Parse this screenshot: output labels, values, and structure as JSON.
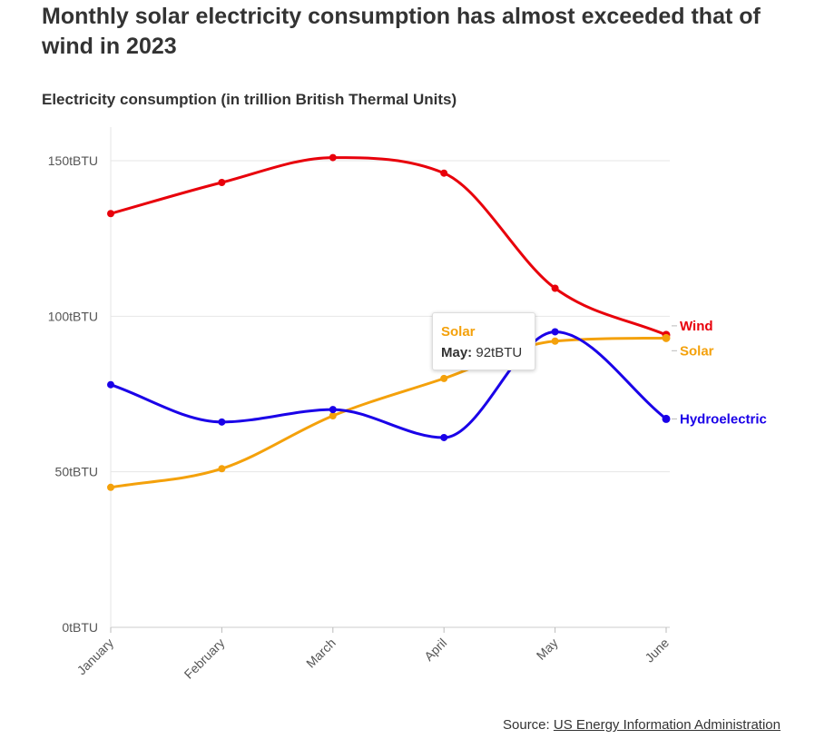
{
  "header": {
    "title": "Monthly solar electricity consumption has almost exceeded that of wind in 2023",
    "subtitle": "Electricity consumption (in trillion British Thermal Units)"
  },
  "chart_data": {
    "type": "line",
    "categories": [
      "January",
      "February",
      "March",
      "April",
      "May",
      "June"
    ],
    "ylim": [
      0,
      160
    ],
    "yticks": [
      0,
      50,
      100,
      150
    ],
    "ytick_labels": [
      "0tBTU",
      "50tBTU",
      "100tBTU",
      "150tBTU"
    ],
    "grid": true,
    "series": [
      {
        "name": "Wind",
        "color": "#e8000b",
        "values": [
          133,
          143,
          151,
          146,
          109,
          94
        ]
      },
      {
        "name": "Solar",
        "color": "#f4a10b",
        "values": [
          45,
          51,
          68,
          80,
          92,
          93
        ]
      },
      {
        "name": "Hydroelectric",
        "color": "#1a00e8",
        "values": [
          78,
          66,
          70,
          61,
          95,
          67
        ]
      }
    ]
  },
  "tooltip": {
    "series": "Solar",
    "label": "May:",
    "value": "92tBTU"
  },
  "source": {
    "prefix": "Source: ",
    "link_text": "US Energy Information Administration"
  }
}
